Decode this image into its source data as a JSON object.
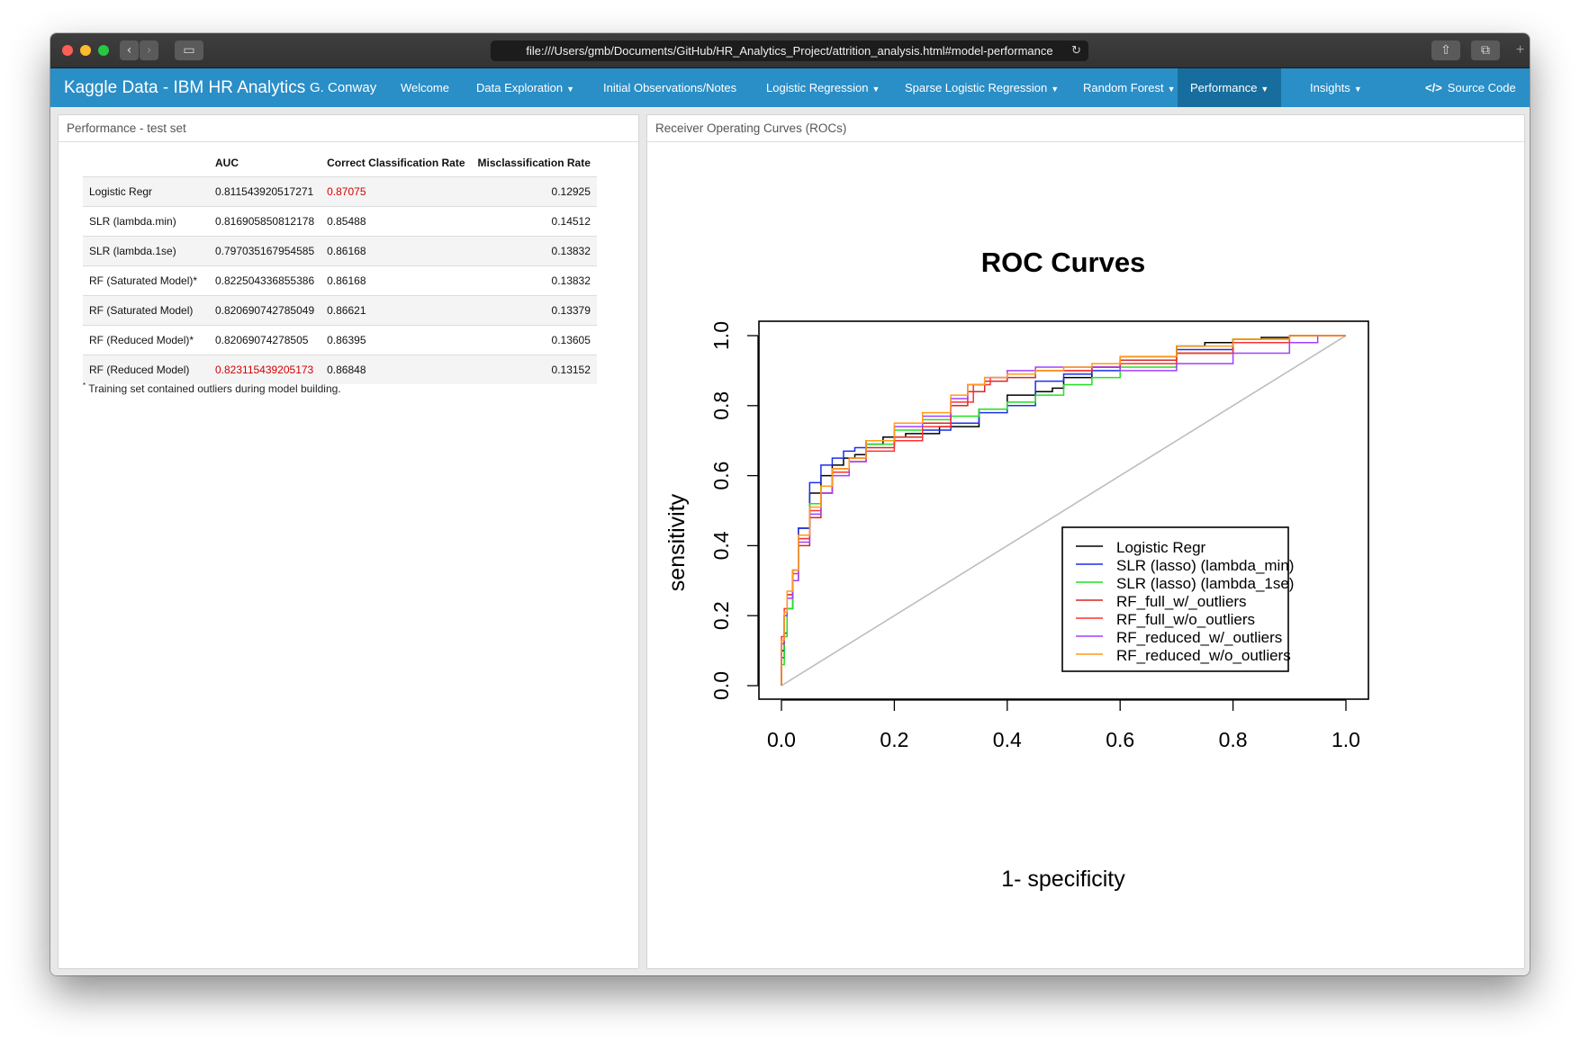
{
  "browser": {
    "url": "file:///Users/gmb/Documents/GitHub/HR_Analytics_Project/attrition_analysis.html#model-performance",
    "reload_icon": "reload-icon"
  },
  "navbar": {
    "brand": "Kaggle Data - IBM HR Analytics",
    "author": "G. Conway",
    "items": [
      {
        "label": "Welcome",
        "dropdown": false
      },
      {
        "label": "Data Exploration",
        "dropdown": true
      },
      {
        "label": "Initial Observations/Notes",
        "dropdown": false
      },
      {
        "label": "Logistic Regression",
        "dropdown": true
      },
      {
        "label": "Sparse Logistic Regression",
        "dropdown": true
      },
      {
        "label": "Random Forest",
        "dropdown": true
      },
      {
        "label": "Performance",
        "dropdown": true,
        "active": true
      },
      {
        "label": "Insights",
        "dropdown": true
      }
    ],
    "source_code": "Source Code",
    "caret": "▼",
    "code_icon": "</>",
    "color": "#2a8ec7",
    "active_color": "#176e9e"
  },
  "left_panel": {
    "title": "Performance - test set",
    "headers": [
      "",
      "AUC",
      "Correct Classification Rate",
      "Misclassification Rate"
    ],
    "rows": [
      {
        "model": "Logistic Regr",
        "auc": "0.811543920517271",
        "ccr": "0.87075",
        "mcr": "0.12925"
      },
      {
        "model": "SLR (lambda.min)",
        "auc": "0.816905850812178",
        "ccr": "0.85488",
        "mcr": "0.14512"
      },
      {
        "model": "SLR (lambda.1se)",
        "auc": "0.797035167954585",
        "ccr": "0.86168",
        "mcr": "0.13832"
      },
      {
        "model": "RF (Saturated Model)*",
        "auc": "0.822504336855386",
        "ccr": "0.86168",
        "mcr": "0.13832"
      },
      {
        "model": "RF (Saturated Model)",
        "auc": "0.820690742785049",
        "ccr": "0.86621",
        "mcr": "0.13379"
      },
      {
        "model": "RF (Reduced Model)*",
        "auc": "0.82069074278505",
        "ccr": "0.86395",
        "mcr": "0.13605"
      },
      {
        "model": "RF (Reduced Model)",
        "auc": "0.823115439205173",
        "ccr": "0.86848",
        "mcr": "0.13152"
      }
    ],
    "highlight_color": "#d40000",
    "footnote_mark": "*",
    "footnote": "Training set contained outliers during model building."
  },
  "right_panel": {
    "title": "Receiver Operating Curves (ROCs)"
  },
  "chart_data": {
    "type": "line",
    "title": "ROC Curves",
    "xlabel": "1- specificity",
    "ylabel": "sensitivity",
    "xlim": [
      0,
      1
    ],
    "ylim": [
      0,
      1
    ],
    "xticks": [
      "0.0",
      "0.2",
      "0.4",
      "0.6",
      "0.8",
      "1.0"
    ],
    "yticks": [
      "0.0",
      "0.2",
      "0.4",
      "0.6",
      "0.8",
      "1.0"
    ],
    "grid": false,
    "legend_position": "bottom-right",
    "reference_line": {
      "x": [
        0,
        1
      ],
      "y": [
        0,
        1
      ],
      "color": "#bdbdbd"
    },
    "series": [
      {
        "name": "Logistic Regr",
        "color": "#000000",
        "x": [
          0,
          0.005,
          0.01,
          0.02,
          0.03,
          0.05,
          0.07,
          0.09,
          0.11,
          0.13,
          0.15,
          0.18,
          0.22,
          0.28,
          0.35,
          0.4,
          0.45,
          0.48,
          0.5,
          0.55,
          0.6,
          0.7,
          0.75,
          0.8,
          0.85,
          0.9,
          1.0
        ],
        "y": [
          0,
          0.1,
          0.2,
          0.26,
          0.33,
          0.45,
          0.55,
          0.6,
          0.63,
          0.65,
          0.66,
          0.69,
          0.71,
          0.72,
          0.74,
          0.79,
          0.83,
          0.84,
          0.85,
          0.88,
          0.91,
          0.94,
          0.97,
          0.98,
          0.99,
          0.995,
          1.0
        ]
      },
      {
        "name": "SLR (lasso) (lambda_min)",
        "color": "#1c2fe8",
        "x": [
          0,
          0.005,
          0.01,
          0.02,
          0.03,
          0.05,
          0.07,
          0.09,
          0.11,
          0.13,
          0.15,
          0.2,
          0.25,
          0.3,
          0.35,
          0.4,
          0.45,
          0.5,
          0.55,
          0.6,
          0.7,
          0.8,
          0.9,
          1.0
        ],
        "y": [
          0,
          0.08,
          0.15,
          0.22,
          0.3,
          0.45,
          0.58,
          0.63,
          0.65,
          0.67,
          0.68,
          0.7,
          0.71,
          0.73,
          0.75,
          0.78,
          0.8,
          0.87,
          0.89,
          0.9,
          0.93,
          0.96,
          0.99,
          1.0
        ]
      },
      {
        "name": "SLR (lasso) (lambda_1se)",
        "color": "#22e022",
        "x": [
          0,
          0.005,
          0.01,
          0.02,
          0.03,
          0.05,
          0.07,
          0.09,
          0.12,
          0.15,
          0.2,
          0.25,
          0.3,
          0.35,
          0.4,
          0.45,
          0.5,
          0.55,
          0.6,
          0.7,
          0.8,
          0.9,
          1.0
        ],
        "y": [
          0,
          0.06,
          0.14,
          0.22,
          0.3,
          0.42,
          0.52,
          0.57,
          0.62,
          0.65,
          0.69,
          0.73,
          0.76,
          0.77,
          0.79,
          0.81,
          0.83,
          0.86,
          0.88,
          0.91,
          0.95,
          0.99,
          1.0
        ]
      },
      {
        "name": "RF_full_w/_outliers",
        "color": "#d62728",
        "x": [
          0,
          0.005,
          0.01,
          0.02,
          0.03,
          0.05,
          0.07,
          0.09,
          0.12,
          0.15,
          0.2,
          0.25,
          0.3,
          0.33,
          0.36,
          0.4,
          0.45,
          0.5,
          0.55,
          0.6,
          0.7,
          0.8,
          0.9,
          1.0
        ],
        "y": [
          0,
          0.12,
          0.2,
          0.25,
          0.3,
          0.4,
          0.48,
          0.55,
          0.62,
          0.65,
          0.68,
          0.71,
          0.75,
          0.8,
          0.84,
          0.87,
          0.88,
          0.9,
          0.9,
          0.91,
          0.93,
          0.95,
          0.98,
          1.0
        ]
      },
      {
        "name": "RF_full_w/o_outliers",
        "color": "#ff3030",
        "x": [
          0,
          0.005,
          0.01,
          0.02,
          0.03,
          0.05,
          0.07,
          0.09,
          0.12,
          0.15,
          0.2,
          0.25,
          0.3,
          0.34,
          0.37,
          0.4,
          0.45,
          0.5,
          0.55,
          0.6,
          0.7,
          0.8,
          0.9,
          1.0
        ],
        "y": [
          0,
          0.14,
          0.22,
          0.26,
          0.32,
          0.42,
          0.5,
          0.55,
          0.61,
          0.64,
          0.67,
          0.7,
          0.74,
          0.81,
          0.86,
          0.88,
          0.89,
          0.9,
          0.9,
          0.91,
          0.92,
          0.95,
          0.98,
          1.0
        ]
      },
      {
        "name": "RF_reduced_w/_outliers",
        "color": "#a040ff",
        "x": [
          0,
          0.005,
          0.01,
          0.02,
          0.03,
          0.05,
          0.07,
          0.09,
          0.12,
          0.15,
          0.2,
          0.25,
          0.3,
          0.33,
          0.36,
          0.4,
          0.45,
          0.5,
          0.55,
          0.6,
          0.7,
          0.8,
          0.9,
          0.95,
          1.0
        ],
        "y": [
          0,
          0.12,
          0.2,
          0.25,
          0.3,
          0.41,
          0.49,
          0.55,
          0.6,
          0.64,
          0.7,
          0.74,
          0.77,
          0.82,
          0.86,
          0.88,
          0.9,
          0.91,
          0.91,
          0.91,
          0.9,
          0.92,
          0.95,
          0.98,
          1.0
        ]
      },
      {
        "name": "RF_reduced_w/o_outliers",
        "color": "#ff9a1a",
        "x": [
          0,
          0.005,
          0.01,
          0.02,
          0.03,
          0.05,
          0.07,
          0.09,
          0.12,
          0.15,
          0.2,
          0.25,
          0.3,
          0.33,
          0.36,
          0.4,
          0.45,
          0.5,
          0.55,
          0.6,
          0.7,
          0.8,
          0.9,
          1.0
        ],
        "y": [
          0,
          0.13,
          0.21,
          0.27,
          0.33,
          0.43,
          0.51,
          0.57,
          0.62,
          0.65,
          0.7,
          0.75,
          0.78,
          0.83,
          0.86,
          0.88,
          0.89,
          0.9,
          0.91,
          0.92,
          0.94,
          0.97,
          0.99,
          1.0
        ]
      }
    ]
  }
}
